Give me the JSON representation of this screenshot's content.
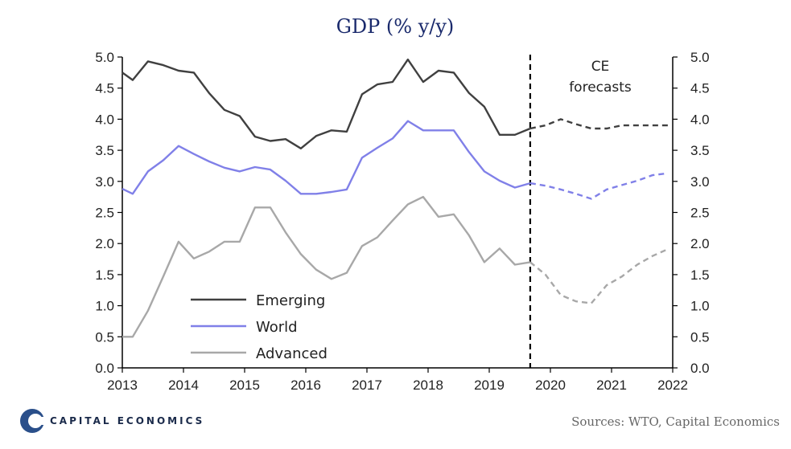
{
  "chart_data": {
    "type": "line",
    "title": "GDP (% y/y)",
    "xlabel": "",
    "ylabel": "",
    "xlim": [
      2013,
      2022
    ],
    "ylim": [
      0,
      5
    ],
    "yticks": [
      "0.0",
      "0.5",
      "1.0",
      "1.5",
      "2.0",
      "2.5",
      "3.0",
      "3.5",
      "4.0",
      "4.5",
      "5.0"
    ],
    "xticks": [
      "2013",
      "2014",
      "2015",
      "2016",
      "2017",
      "2018",
      "2019",
      "2020",
      "2021",
      "2022"
    ],
    "forecast_start": 2019.67,
    "annotation": [
      "CE",
      "forecasts"
    ],
    "legend_position": "bottom-left",
    "series": [
      {
        "name": "Emerging",
        "color": "#404040",
        "x": [
          2013.0,
          2013.17,
          2013.42,
          2013.67,
          2013.92,
          2014.17,
          2014.42,
          2014.67,
          2014.92,
          2015.17,
          2015.42,
          2015.67,
          2015.92,
          2016.17,
          2016.42,
          2016.67,
          2016.92,
          2017.17,
          2017.42,
          2017.67,
          2017.92,
          2018.17,
          2018.42,
          2018.67,
          2018.92,
          2019.17,
          2019.42,
          2019.67
        ],
        "y": [
          4.75,
          4.63,
          4.93,
          4.87,
          4.78,
          4.75,
          4.42,
          4.15,
          4.05,
          3.72,
          3.65,
          3.68,
          3.53,
          3.73,
          3.82,
          3.8,
          4.4,
          4.56,
          4.6,
          4.96,
          4.6,
          4.78,
          4.75,
          4.42,
          4.2,
          3.75,
          3.75,
          3.85
        ],
        "forecast_x": [
          2019.67,
          2019.92,
          2020.17,
          2020.42,
          2020.67,
          2020.92,
          2021.17,
          2021.42,
          2021.67,
          2021.92
        ],
        "forecast_y": [
          3.85,
          3.9,
          4.0,
          3.92,
          3.85,
          3.85,
          3.9,
          3.9,
          3.9,
          3.9
        ]
      },
      {
        "name": "World",
        "color": "#8080e8",
        "x": [
          2013.0,
          2013.17,
          2013.42,
          2013.67,
          2013.92,
          2014.17,
          2014.42,
          2014.67,
          2014.92,
          2015.17,
          2015.42,
          2015.67,
          2015.92,
          2016.17,
          2016.42,
          2016.67,
          2016.92,
          2017.17,
          2017.42,
          2017.67,
          2017.92,
          2018.17,
          2018.42,
          2018.67,
          2018.92,
          2019.17,
          2019.42,
          2019.67
        ],
        "y": [
          2.88,
          2.8,
          3.16,
          3.34,
          3.57,
          3.44,
          3.32,
          3.22,
          3.16,
          3.23,
          3.19,
          3.01,
          2.8,
          2.8,
          2.83,
          2.87,
          3.38,
          3.54,
          3.69,
          3.97,
          3.82,
          3.82,
          3.82,
          3.47,
          3.16,
          3.01,
          2.9,
          2.97
        ],
        "forecast_x": [
          2019.67,
          2019.92,
          2020.17,
          2020.42,
          2020.67,
          2020.92,
          2021.17,
          2021.42,
          2021.67,
          2021.92
        ],
        "forecast_y": [
          2.97,
          2.93,
          2.87,
          2.8,
          2.72,
          2.87,
          2.94,
          3.01,
          3.1,
          3.13
        ]
      },
      {
        "name": "Advanced",
        "color": "#a8a8a8",
        "x": [
          2013.0,
          2013.17,
          2013.42,
          2013.67,
          2013.92,
          2014.17,
          2014.42,
          2014.67,
          2014.92,
          2015.17,
          2015.42,
          2015.67,
          2015.92,
          2016.17,
          2016.42,
          2016.67,
          2016.92,
          2017.17,
          2017.42,
          2017.67,
          2017.92,
          2018.17,
          2018.42,
          2018.67,
          2018.92,
          2019.17,
          2019.42,
          2019.67
        ],
        "y": [
          0.5,
          0.5,
          0.92,
          1.47,
          2.03,
          1.76,
          1.87,
          2.03,
          2.03,
          2.58,
          2.58,
          2.18,
          1.83,
          1.58,
          1.43,
          1.53,
          1.96,
          2.1,
          2.37,
          2.63,
          2.75,
          2.43,
          2.47,
          2.13,
          1.7,
          1.92,
          1.66,
          1.7
        ],
        "forecast_x": [
          2019.67,
          2019.92,
          2020.17,
          2020.42,
          2020.67,
          2020.92,
          2021.17,
          2021.42,
          2021.67,
          2021.92
        ],
        "forecast_y": [
          1.7,
          1.5,
          1.17,
          1.07,
          1.04,
          1.33,
          1.47,
          1.66,
          1.8,
          1.91
        ]
      }
    ]
  },
  "footer": {
    "brand": "CAPITAL ECONOMICS",
    "source": "Sources:  WTO, Capital Economics"
  }
}
